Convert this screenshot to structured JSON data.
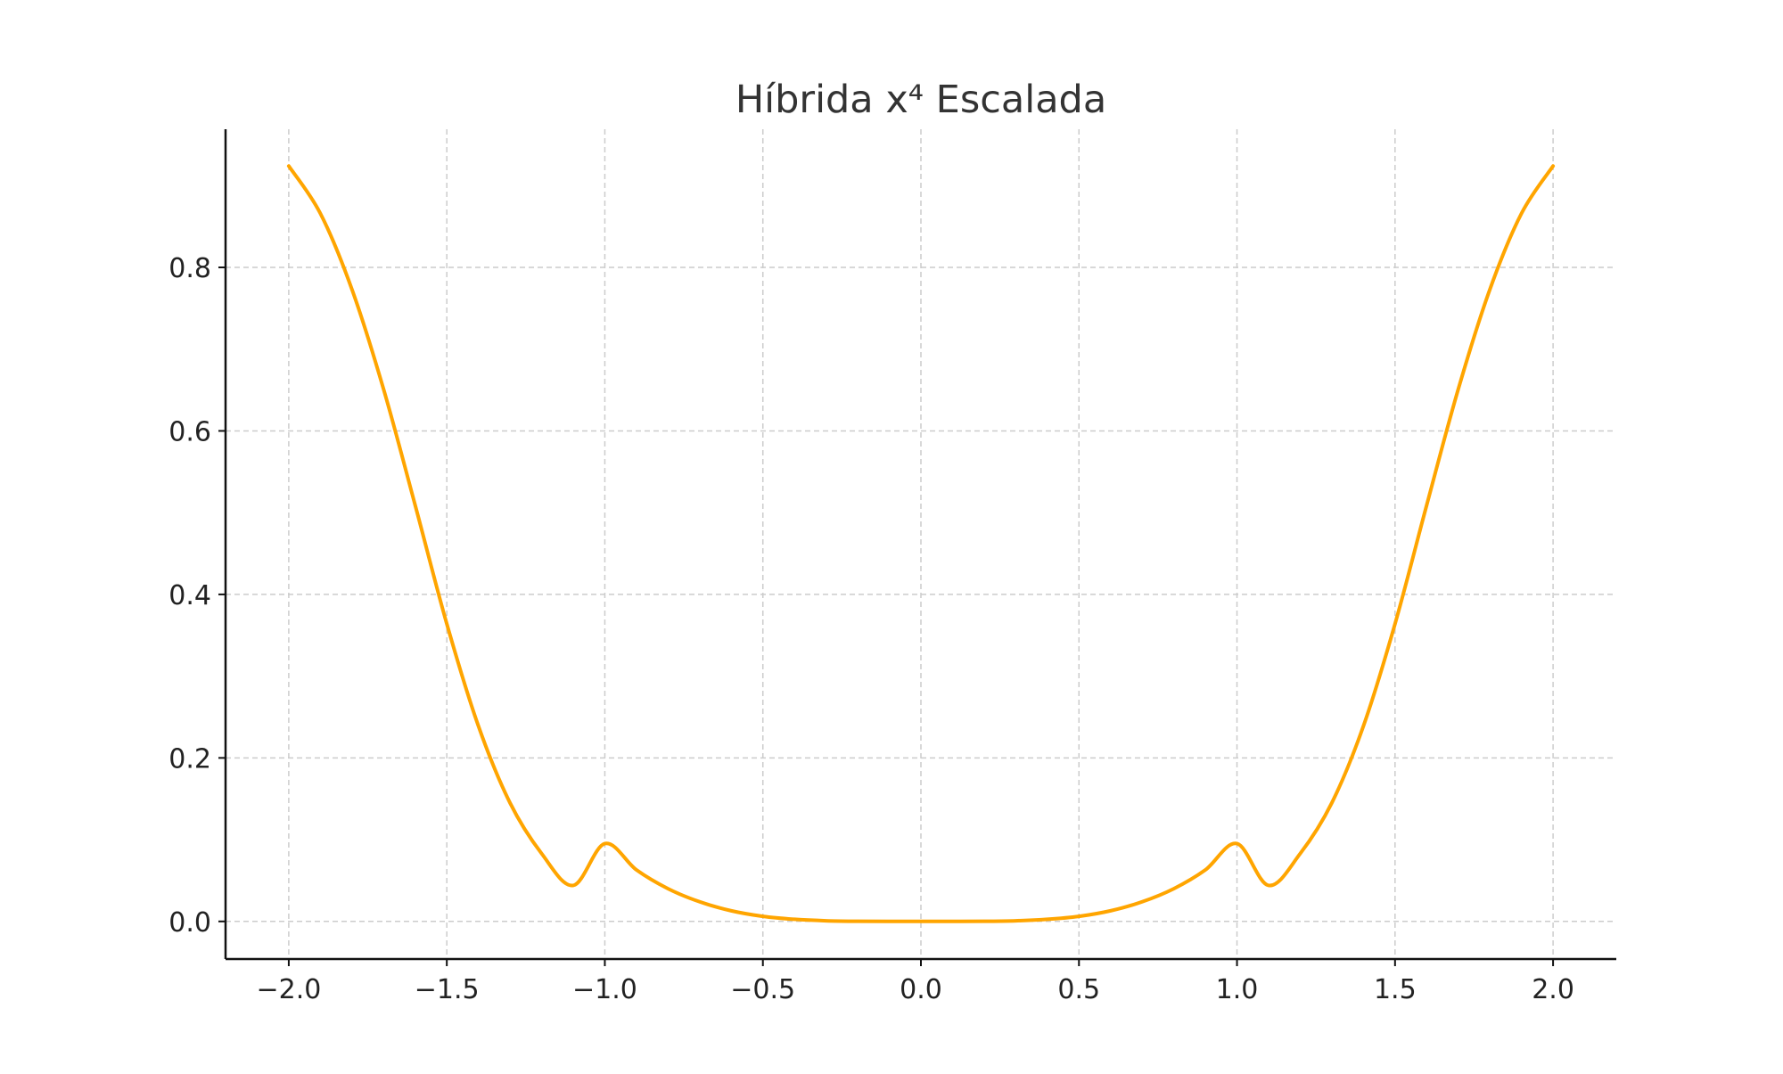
{
  "chart_data": {
    "type": "line",
    "title": "Híbrida x⁴ Escalada",
    "xlabel": "",
    "ylabel": "",
    "xlim": [
      -2.2,
      2.2
    ],
    "ylim": [
      -0.046,
      0.969
    ],
    "x_ticks": [
      -2.0,
      -1.5,
      -1.0,
      -0.5,
      0.0,
      0.5,
      1.0,
      1.5,
      2.0
    ],
    "x_tick_labels": [
      "−2.0",
      "−1.5",
      "−1.0",
      "−0.5",
      "0.0",
      "0.5",
      "1.0",
      "1.5",
      "2.0"
    ],
    "y_ticks": [
      0.0,
      0.2,
      0.4,
      0.6,
      0.8
    ],
    "y_tick_labels": [
      "0.0",
      "0.2",
      "0.4",
      "0.6",
      "0.8"
    ],
    "grid": true,
    "legend": "none",
    "series": [
      {
        "color": "#FFA500",
        "x": [
          -2.0,
          -1.9,
          -1.8,
          -1.7,
          -1.6,
          -1.5,
          -1.4,
          -1.3,
          -1.2,
          -1.1,
          -1.0,
          -0.9,
          -0.8,
          -0.7,
          -0.6,
          -0.5,
          -0.4,
          -0.3,
          -0.2,
          -0.1,
          0.0,
          0.1,
          0.2,
          0.3,
          0.4,
          0.5,
          0.6,
          0.7,
          0.8,
          0.9,
          1.0,
          1.1,
          1.2,
          1.3,
          1.4,
          1.5,
          1.6,
          1.7,
          1.8,
          1.9,
          2.0
        ],
        "y": [
          0.924,
          0.866,
          0.773,
          0.651,
          0.509,
          0.364,
          0.239,
          0.145,
          0.083,
          0.044,
          0.0952,
          0.063,
          0.04,
          0.024,
          0.013,
          0.0062,
          0.0026,
          0.0008,
          0.0002,
          0.0,
          0.0,
          0.0,
          0.0002,
          0.0008,
          0.0026,
          0.0062,
          0.013,
          0.024,
          0.04,
          0.063,
          0.0952,
          0.044,
          0.083,
          0.145,
          0.239,
          0.364,
          0.509,
          0.651,
          0.773,
          0.866,
          0.924
        ]
      }
    ]
  }
}
